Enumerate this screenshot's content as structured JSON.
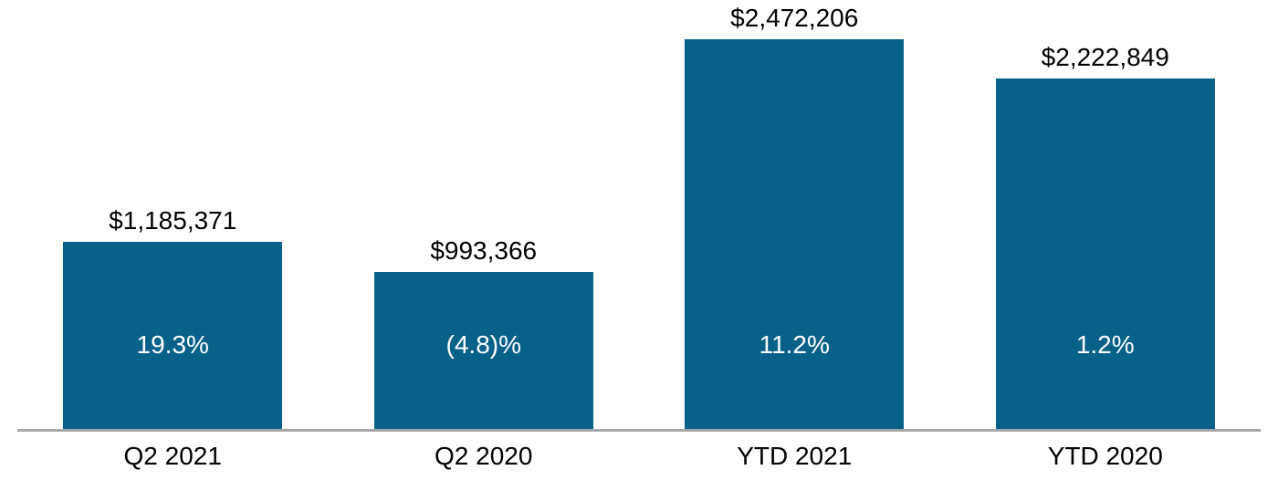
{
  "chart_data": {
    "type": "bar",
    "title": "",
    "xlabel": "",
    "ylabel": "",
    "categories": [
      "Q2 2021",
      "Q2 2020",
      "YTD 2021",
      "YTD 2020"
    ],
    "values": [
      1185371,
      993366,
      2472206,
      2222849
    ],
    "value_labels": [
      "$1,185,371",
      "$993,366",
      "$2,472,206",
      "$2,222,849"
    ],
    "growth_labels": [
      "19.3%",
      "(4.8)%",
      "11.2%",
      "1.2%"
    ],
    "ylim": [
      0,
      2720000
    ],
    "grid": false,
    "legend": false,
    "axes_shown": "x-axis baseline only, no y-axis, no tick marks",
    "colors": {
      "bar": "#086189",
      "axis_line": "#A6A6A6",
      "value_label_text": "#000000",
      "growth_label_text": "#FFFFFF",
      "background": "#FFFFFF"
    }
  }
}
